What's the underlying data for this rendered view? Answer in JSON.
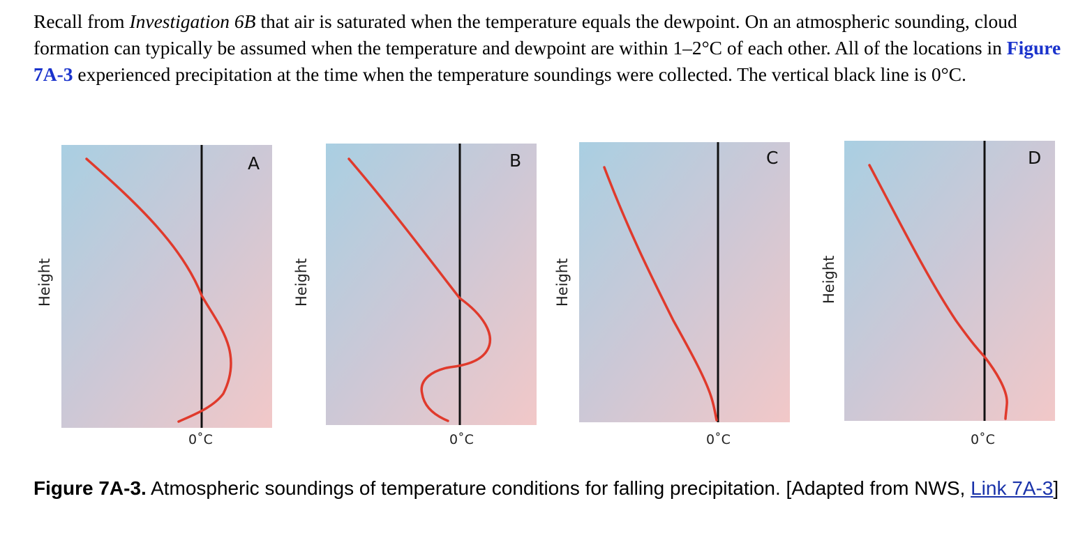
{
  "intro": {
    "text_1": "Recall from ",
    "investigation": "Investigation 6B",
    "text_2": " that air is saturated when the temperature equals the dewpoint. On an atmospheric sounding, cloud formation can typically be assumed when the temperature and dewpoint are within 1–2°C of each other. All of the locations in ",
    "figure_ref": "Figure 7A-3",
    "text_3": " experienced precipitation at the time when the temperature soundings were collected. The vertical black line is 0°C."
  },
  "figure": {
    "panels": [
      {
        "letter": "A",
        "y_axis_label": "Height",
        "x_marker_label": "0˚C"
      },
      {
        "letter": "B",
        "y_axis_label": "Height",
        "x_marker_label": "0˚C"
      },
      {
        "letter": "C",
        "y_axis_label": "Height",
        "x_marker_label": "0˚C"
      },
      {
        "letter": "D",
        "y_axis_label": "Height",
        "x_marker_label": "0˚C"
      }
    ],
    "colors": {
      "sounding_line": "#e03a2c",
      "zero_line": "#111111",
      "background_top": "#a9cfe2",
      "background_bottom": "#f2c8c8"
    }
  },
  "caption": {
    "figure_label": "Figure 7A-3.",
    "text": " Atmospheric soundings of temperature conditions for falling precipitation. [Adapted from NWS, ",
    "link_text": "Link 7A-3",
    "closing": "]"
  }
}
